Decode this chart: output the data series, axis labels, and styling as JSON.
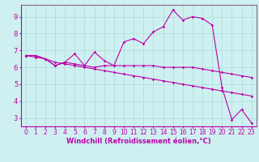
{
  "title": "",
  "xlabel": "Windchill (Refroidissement éolien,°C)",
  "ylabel": "",
  "bg_color": "#cff0f0",
  "line_color": "#bb00aa",
  "xlim": [
    -0.5,
    23.5
  ],
  "ylim": [
    2.5,
    9.7
  ],
  "yticks": [
    3,
    4,
    5,
    6,
    7,
    8,
    9
  ],
  "xticks": [
    0,
    1,
    2,
    3,
    4,
    5,
    6,
    7,
    8,
    9,
    10,
    11,
    12,
    13,
    14,
    15,
    16,
    17,
    18,
    19,
    20,
    21,
    22,
    23
  ],
  "series": [
    [
      6.7,
      6.7,
      6.5,
      6.1,
      6.3,
      6.8,
      6.1,
      6.9,
      6.4,
      6.1,
      7.5,
      7.7,
      7.4,
      8.1,
      8.4,
      9.4,
      8.8,
      9.0,
      8.9,
      8.5,
      4.8,
      2.9,
      3.5,
      2.7
    ],
    [
      6.7,
      6.7,
      6.5,
      6.1,
      6.3,
      6.2,
      6.1,
      6.0,
      6.1,
      6.1,
      6.1,
      6.1,
      6.1,
      6.1,
      6.0,
      6.0,
      6.0,
      6.0,
      5.9,
      5.8,
      5.7,
      5.6,
      5.5,
      5.4
    ],
    [
      6.7,
      6.6,
      6.5,
      6.3,
      6.2,
      6.1,
      6.0,
      5.9,
      5.8,
      5.7,
      5.6,
      5.5,
      5.4,
      5.3,
      5.2,
      5.1,
      5.0,
      4.9,
      4.8,
      4.7,
      4.6,
      4.5,
      4.4,
      4.3
    ]
  ],
  "tick_fontsize": 5.5,
  "xlabel_fontsize": 6.0,
  "grid_color": "#aadddd",
  "spine_color": "#886688"
}
